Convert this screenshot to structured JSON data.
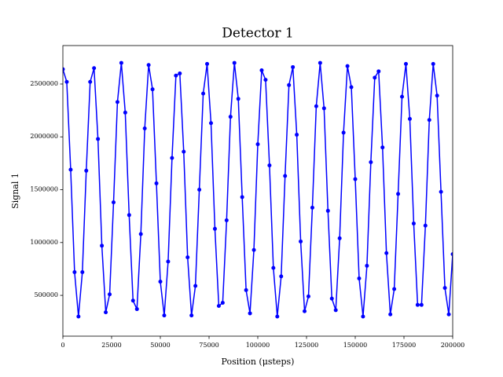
{
  "chart_data": {
    "type": "line",
    "title": "Detector 1",
    "x_label": "Position (μsteps)",
    "y_label": "Signal 1",
    "x": [
      0,
      2000,
      4000,
      6000,
      8000,
      10000,
      12000,
      14000,
      16000,
      18000,
      20000,
      22000,
      24000,
      26000,
      28000,
      30000,
      32000,
      34000,
      36000,
      38000,
      40000,
      42000,
      44000,
      46000,
      48000,
      50000,
      52000,
      54000,
      56000,
      58000,
      60000,
      62000,
      64000,
      66000,
      68000,
      70000,
      72000,
      74000,
      76000,
      78000,
      80000,
      82000,
      84000,
      86000,
      88000,
      90000,
      92000,
      94000,
      96000,
      98000,
      100000,
      102000,
      104000,
      106000,
      108000,
      110000,
      112000,
      114000,
      116000,
      118000,
      120000,
      122000,
      124000,
      126000,
      128000,
      130000,
      132000,
      134000,
      136000,
      138000,
      140000,
      142000,
      144000,
      146000,
      148000,
      150000,
      152000,
      154000,
      156000,
      158000,
      160000,
      162000,
      164000,
      166000,
      168000,
      170000,
      172000,
      174000,
      176000,
      178000,
      180000,
      182000,
      184000,
      186000,
      188000,
      190000,
      192000,
      194000,
      196000,
      198000,
      200000
    ],
    "series": [
      {
        "name": "Signal 1",
        "color": "#0000ff",
        "values": [
          2640000,
          2520000,
          1690000,
          720000,
          300000,
          720000,
          1680000,
          2520000,
          2650000,
          1980000,
          970000,
          340000,
          510000,
          1380000,
          2330000,
          2700000,
          2230000,
          1260000,
          450000,
          370000,
          1080000,
          2080000,
          2680000,
          2450000,
          1560000,
          630000,
          310000,
          820000,
          1800000,
          2580000,
          2600000,
          1860000,
          860000,
          310000,
          590000,
          1500000,
          2410000,
          2690000,
          2130000,
          1130000,
          400000,
          430000,
          1210000,
          2190000,
          2700000,
          2360000,
          1430000,
          550000,
          330000,
          930000,
          1930000,
          2630000,
          2540000,
          1730000,
          760000,
          300000,
          680000,
          1630000,
          2490000,
          2660000,
          2020000,
          1010000,
          350000,
          490000,
          1330000,
          2290000,
          2700000,
          2270000,
          1300000,
          470000,
          360000,
          1040000,
          2040000,
          2670000,
          2470000,
          1600000,
          660000,
          300000,
          780000,
          1760000,
          2560000,
          2620000,
          1900000,
          900000,
          320000,
          560000,
          1460000,
          2380000,
          2690000,
          2170000,
          1180000,
          410000,
          410000,
          1160000,
          2160000,
          2690000,
          2390000,
          1480000,
          570000,
          320000,
          890000
        ]
      }
    ],
    "xlim": [
      0,
      200000
    ],
    "xticks": [
      0,
      25000,
      50000,
      75000,
      100000,
      125000,
      150000,
      175000,
      200000
    ],
    "ylim": [
      114000,
      2864000
    ],
    "yticks": [
      500000,
      1000000,
      1500000,
      2000000,
      2500000
    ],
    "grid": false
  }
}
